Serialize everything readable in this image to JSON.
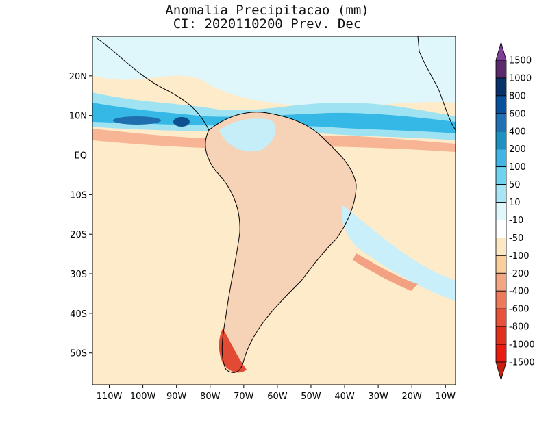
{
  "title": {
    "line1": "Anomalia Precipitacao (mm)",
    "line2": "CI: 2020110200 Prev. Dec"
  },
  "map": {
    "lon_labels": [
      "110W",
      "100W",
      "90W",
      "80W",
      "70W",
      "60W",
      "50W",
      "40W",
      "30W",
      "20W",
      "10W"
    ],
    "lat_labels": [
      "20N",
      "10N",
      "EQ",
      "10S",
      "20S",
      "30S",
      "40S",
      "50S"
    ],
    "lon_range": [
      -115,
      -7
    ],
    "lat_range": [
      -58,
      30
    ]
  },
  "colorbar": {
    "levels": [
      "1500",
      "1000",
      "800",
      "600",
      "400",
      "200",
      "100",
      "50",
      "10",
      "-10",
      "-50",
      "-100",
      "-200",
      "-400",
      "-600",
      "-800",
      "-1000",
      "-1500"
    ],
    "colors": [
      "#7f3f98",
      "#5a2a6a",
      "#08306b",
      "#08519c",
      "#2171b5",
      "#1d91c0",
      "#41b6e6",
      "#6dd3f0",
      "#a8e6f5",
      "#e0f7fb",
      "#ffffff",
      "#fce8c3",
      "#f9cf9b",
      "#f4a582",
      "#ef7a5a",
      "#e8523a",
      "#e0301e",
      "#ea1b10",
      "#c81e10"
    ]
  }
}
